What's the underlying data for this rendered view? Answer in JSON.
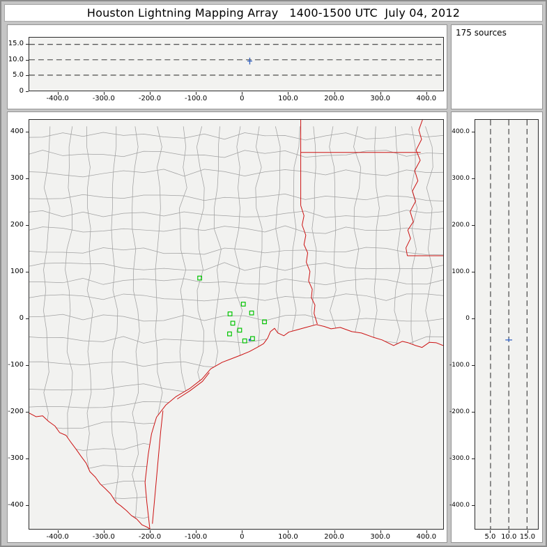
{
  "window": {
    "title": "Houston Lightning Mapping Array   1400-1500 UTC  July 04, 2012"
  },
  "sources_panel": {
    "label": "175 sources"
  },
  "colors": {
    "window_bg": "#c5c5c5",
    "panel_bg": "#ffffff",
    "plot_bg": "#f2f2f0",
    "plot_border": "#2a2a2a",
    "grid_dash": "#222222",
    "county_line": "#a0a0a0",
    "state_border": "#cc1111",
    "station": "#00c400",
    "source": "#2f5fbf"
  },
  "chart_data": [
    {
      "id": "altitude-vs-east-west",
      "type": "scatter",
      "xlim": [
        -463,
        438
      ],
      "ylim": [
        0,
        17.2
      ],
      "xticks": {
        "values": [
          -400,
          -300,
          -200,
          -100,
          0,
          100,
          200,
          300,
          400
        ],
        "labels": [
          "-400.0",
          "-300.0",
          "-200.0",
          "-100.0",
          "0",
          "100.0",
          "200.0",
          "300.0",
          "400.0"
        ]
      },
      "yticks": {
        "values": [
          15,
          10,
          5,
          0
        ],
        "labels": [
          "15.0",
          "10.0",
          "5.0",
          "0"
        ]
      },
      "gridlines_y": [
        5,
        10,
        15
      ],
      "points": [
        {
          "x": 17,
          "y": 9.6
        }
      ]
    },
    {
      "id": "plan-view-map",
      "type": "scatter",
      "xlim": [
        -463,
        438
      ],
      "ylim": [
        -452,
        427
      ],
      "xticks": {
        "values": [
          -400,
          -300,
          -200,
          -100,
          0,
          100,
          200,
          300,
          400
        ],
        "labels": [
          "-400.0",
          "-300.0",
          "-200.0",
          "-100.0",
          "0",
          "100.0",
          "200.0",
          "300.0",
          "400.0"
        ]
      },
      "yticks": {
        "values": [
          400,
          300,
          200,
          100,
          0,
          -100,
          -200,
          -300,
          -400
        ],
        "labels": [
          "400",
          "300",
          "200",
          "100",
          "0",
          "-100",
          "-200",
          "-300",
          "-400"
        ]
      },
      "stations": [
        [
          -92,
          87
        ],
        [
          3,
          31
        ],
        [
          -26,
          10
        ],
        [
          21,
          12
        ],
        [
          -20,
          -10
        ],
        [
          -5,
          -25
        ],
        [
          -27,
          -33
        ],
        [
          6,
          -48
        ],
        [
          23,
          -43
        ],
        [
          49,
          -7
        ]
      ],
      "source_cluster": [
        17,
        -46
      ],
      "geography": {
        "coastline": [
          [
            -200,
            -457
          ],
          [
            -207,
            -395
          ],
          [
            -211,
            -352
          ],
          [
            -204,
            -292
          ],
          [
            -197,
            -248
          ],
          [
            -186,
            -212
          ],
          [
            -166,
            -186
          ],
          [
            -144,
            -168
          ],
          [
            -113,
            -150
          ],
          [
            -87,
            -130
          ],
          [
            -68,
            -108
          ],
          [
            -43,
            -94
          ],
          [
            -22,
            -86
          ],
          [
            -1,
            -78
          ],
          [
            16,
            -71
          ],
          [
            33,
            -62
          ],
          [
            47,
            -54
          ],
          [
            56,
            -42
          ],
          [
            62,
            -28
          ],
          [
            71,
            -21
          ],
          [
            78,
            -31
          ],
          [
            91,
            -37
          ],
          [
            102,
            -29
          ],
          [
            117,
            -25
          ],
          [
            139,
            -19
          ],
          [
            162,
            -13
          ],
          [
            179,
            -17
          ],
          [
            194,
            -22
          ],
          [
            214,
            -19
          ],
          [
            239,
            -28
          ],
          [
            260,
            -31
          ],
          [
            285,
            -40
          ],
          [
            305,
            -46
          ],
          [
            330,
            -58
          ],
          [
            349,
            -49
          ],
          [
            362,
            -52
          ],
          [
            378,
            -58
          ],
          [
            392,
            -62
          ],
          [
            408,
            -51
          ],
          [
            423,
            -52
          ],
          [
            438,
            -58
          ]
        ],
        "rio_grande": [
          [
            -463,
            -203
          ],
          [
            -448,
            -211
          ],
          [
            -434,
            -209
          ],
          [
            -421,
            -221
          ],
          [
            -407,
            -231
          ],
          [
            -397,
            -245
          ],
          [
            -383,
            -251
          ],
          [
            -373,
            -265
          ],
          [
            -361,
            -281
          ],
          [
            -351,
            -295
          ],
          [
            -339,
            -311
          ],
          [
            -331,
            -329
          ],
          [
            -319,
            -341
          ],
          [
            -309,
            -355
          ],
          [
            -298,
            -365
          ],
          [
            -286,
            -377
          ],
          [
            -274,
            -395
          ],
          [
            -263,
            -403
          ],
          [
            -251,
            -413
          ],
          [
            -241,
            -423
          ],
          [
            -229,
            -431
          ],
          [
            -218,
            -443
          ],
          [
            -205,
            -449
          ],
          [
            -198,
            -455
          ]
        ],
        "barrier_islands": [
          [
            [
              -172,
              -198
            ],
            [
              -177,
              -243
            ],
            [
              -182,
              -298
            ],
            [
              -187,
              -353
            ],
            [
              -192,
              -408
            ],
            [
              -195,
              -441
            ]
          ],
          [
            [
              -141,
              -173
            ],
            [
              -113,
              -155
            ],
            [
              -86,
              -135
            ],
            [
              -71,
              -116
            ]
          ]
        ],
        "state_borders": [
          {
            "name": "texas-arkansas-line",
            "points": [
              [
                128,
                427
              ],
              [
                128,
                243
              ]
            ]
          },
          {
            "name": "sabine-river",
            "points": [
              [
                128,
                243
              ],
              [
                135,
                221
              ],
              [
                131,
                201
              ],
              [
                139,
                179
              ],
              [
                135,
                159
              ],
              [
                143,
                141
              ],
              [
                140,
                121
              ],
              [
                148,
                101
              ],
              [
                145,
                81
              ],
              [
                153,
                63
              ],
              [
                151,
                45
              ],
              [
                159,
                29
              ],
              [
                157,
                11
              ],
              [
                164,
                -12
              ]
            ]
          },
          {
            "name": "arkansas-louisiana-line",
            "points": [
              [
                128,
                357
              ],
              [
                389,
                357
              ]
            ]
          },
          {
            "name": "mississippi-river",
            "points": [
              [
                393,
                427
              ],
              [
                385,
                405
              ],
              [
                391,
                385
              ],
              [
                379,
                362
              ],
              [
                388,
                340
              ],
              [
                376,
                318
              ],
              [
                383,
                296
              ],
              [
                371,
                274
              ],
              [
                378,
                252
              ],
              [
                366,
                230
              ],
              [
                373,
                208
              ],
              [
                361,
                190
              ],
              [
                367,
                172
              ],
              [
                357,
                152
              ],
              [
                360,
                135
              ]
            ]
          },
          {
            "name": "louisiana-mississippi-line",
            "points": [
              [
                360,
                135
              ],
              [
                438,
                135
              ]
            ]
          }
        ]
      }
    },
    {
      "id": "altitude-vs-north-south",
      "type": "scatter",
      "xlim": [
        0.8,
        18
      ],
      "ylim": [
        -452,
        427
      ],
      "xticks": {
        "values": [
          5,
          10,
          15
        ],
        "labels": [
          "5.0",
          "10.0",
          "15.0"
        ]
      },
      "yticks": {
        "values": [
          400,
          300,
          200,
          100,
          0,
          -100,
          -200,
          -300,
          -400
        ],
        "labels": [
          "400.0",
          "300.0",
          "200.0",
          "100.0",
          "0",
          "-100.0",
          "-200.0",
          "-300.0",
          "-400.0"
        ]
      },
      "gridlines_x": [
        5,
        10,
        15
      ],
      "points": [
        {
          "x": 10,
          "y": -46
        }
      ]
    }
  ]
}
